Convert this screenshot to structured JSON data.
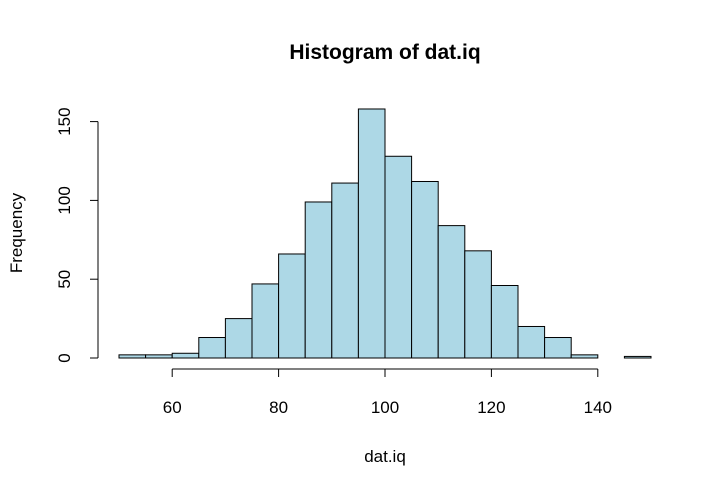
{
  "chart_data": {
    "type": "bar",
    "title": "Histogram of dat.iq",
    "xlabel": "dat.iq",
    "ylabel": "Frequency",
    "bar_color": "#ADD8E6",
    "border_color": "#000000",
    "bins": [
      {
        "start": 50,
        "end": 55,
        "count": 2
      },
      {
        "start": 55,
        "end": 60,
        "count": 2
      },
      {
        "start": 60,
        "end": 65,
        "count": 3
      },
      {
        "start": 65,
        "end": 70,
        "count": 13
      },
      {
        "start": 70,
        "end": 75,
        "count": 25
      },
      {
        "start": 75,
        "end": 80,
        "count": 47
      },
      {
        "start": 80,
        "end": 85,
        "count": 66
      },
      {
        "start": 85,
        "end": 90,
        "count": 99
      },
      {
        "start": 90,
        "end": 95,
        "count": 111
      },
      {
        "start": 95,
        "end": 100,
        "count": 158
      },
      {
        "start": 100,
        "end": 105,
        "count": 128
      },
      {
        "start": 105,
        "end": 110,
        "count": 112
      },
      {
        "start": 110,
        "end": 115,
        "count": 84
      },
      {
        "start": 115,
        "end": 120,
        "count": 68
      },
      {
        "start": 120,
        "end": 125,
        "count": 46
      },
      {
        "start": 125,
        "end": 130,
        "count": 20
      },
      {
        "start": 130,
        "end": 135,
        "count": 13
      },
      {
        "start": 135,
        "end": 140,
        "count": 2
      },
      {
        "start": 140,
        "end": 145,
        "count": 0
      },
      {
        "start": 145,
        "end": 150,
        "count": 1
      }
    ],
    "xlim": [
      50,
      150
    ],
    "ylim": [
      0,
      160
    ],
    "x_ticks": [
      60,
      80,
      100,
      120,
      140
    ],
    "y_ticks": [
      0,
      50,
      100,
      150
    ],
    "grid": false,
    "legend": "none"
  }
}
